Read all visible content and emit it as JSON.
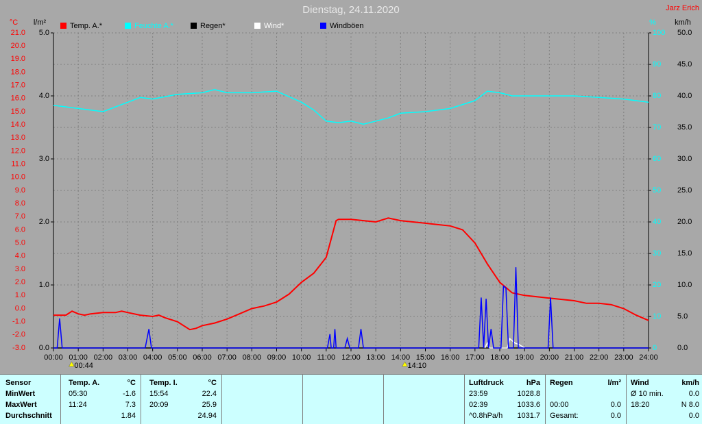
{
  "chart_data": {
    "type": "line",
    "title": "Dienstag, 24.11.2020",
    "author": "Jarz Erich",
    "y_label": "°C",
    "y3_label": "l/m²",
    "y2_label": "%",
    "y4_label": "km/h",
    "xlim": [
      0,
      24
    ],
    "xticks": [
      {
        "value": 0,
        "label": "00:00"
      },
      {
        "value": 1,
        "label": "01:00"
      },
      {
        "value": 2,
        "label": "02:00"
      },
      {
        "value": 3,
        "label": "03:00"
      },
      {
        "value": 4,
        "label": "04:00"
      },
      {
        "value": 5,
        "label": "05:00"
      },
      {
        "value": 6,
        "label": "06:00"
      },
      {
        "value": 7,
        "label": "07:00"
      },
      {
        "value": 8,
        "label": "08:00"
      },
      {
        "value": 9,
        "label": "09:00"
      },
      {
        "value": 10,
        "label": "10:00"
      },
      {
        "value": 11,
        "label": "11:00"
      },
      {
        "value": 12,
        "label": "12:00"
      },
      {
        "value": 13,
        "label": "13:00"
      },
      {
        "value": 14,
        "label": "14:00"
      },
      {
        "value": 15,
        "label": "15:00"
      },
      {
        "value": 16,
        "label": "16:00"
      },
      {
        "value": 17,
        "label": "17:00"
      },
      {
        "value": 18,
        "label": "18:00"
      },
      {
        "value": 19,
        "label": "19:00"
      },
      {
        "value": 20,
        "label": "20:00"
      },
      {
        "value": 21,
        "label": "21:00"
      },
      {
        "value": 22,
        "label": "22:00"
      },
      {
        "value": 23,
        "label": "23:00"
      },
      {
        "value": 24,
        "label": "24:00"
      }
    ],
    "ylim": [
      -3,
      21
    ],
    "yticks": [
      {
        "value": -3,
        "label": "-3.0"
      },
      {
        "value": -2,
        "label": "-2.0"
      },
      {
        "value": -1,
        "label": "-1.0"
      },
      {
        "value": 0,
        "label": "0.0"
      },
      {
        "value": 1,
        "label": "1.0"
      },
      {
        "value": 2,
        "label": "2.0"
      },
      {
        "value": 3,
        "label": "3.0"
      },
      {
        "value": 4,
        "label": "4.0"
      },
      {
        "value": 5,
        "label": "5.0"
      },
      {
        "value": 6,
        "label": "6.0"
      },
      {
        "value": 7,
        "label": "7.0"
      },
      {
        "value": 8,
        "label": "8.0"
      },
      {
        "value": 9,
        "label": "9.0"
      },
      {
        "value": 10,
        "label": "10.0"
      },
      {
        "value": 11,
        "label": "11.0"
      },
      {
        "value": 12,
        "label": "12.0"
      },
      {
        "value": 13,
        "label": "13.0"
      },
      {
        "value": 14,
        "label": "14.0"
      },
      {
        "value": 15,
        "label": "15.0"
      },
      {
        "value": 16,
        "label": "16.0"
      },
      {
        "value": 17,
        "label": "17.0"
      },
      {
        "value": 18,
        "label": "18.0"
      },
      {
        "value": 19,
        "label": "19.0"
      },
      {
        "value": 20,
        "label": "20.0"
      },
      {
        "value": 21,
        "label": "21.0"
      }
    ],
    "y2lim": [
      0,
      100
    ],
    "y2ticks": [
      0,
      10,
      20,
      30,
      40,
      50,
      60,
      70,
      80,
      90,
      100
    ],
    "y3lim": [
      0,
      5
    ],
    "y3ticks": [
      {
        "value": 0,
        "label": "0.0"
      },
      {
        "value": 1,
        "label": "1.0"
      },
      {
        "value": 2,
        "label": "2.0"
      },
      {
        "value": 3,
        "label": "3.0"
      },
      {
        "value": 4,
        "label": "4.0"
      },
      {
        "value": 5,
        "label": "5.0"
      }
    ],
    "y4lim": [
      0,
      50
    ],
    "y4ticks": [
      {
        "value": 0,
        "label": "0.0"
      },
      {
        "value": 5,
        "label": "5.0"
      },
      {
        "value": 10,
        "label": "10.0"
      },
      {
        "value": 15,
        "label": "15.0"
      },
      {
        "value": 20,
        "label": "20.0"
      },
      {
        "value": 25,
        "label": "25.0"
      },
      {
        "value": 30,
        "label": "30.0"
      },
      {
        "value": 35,
        "label": "35.0"
      },
      {
        "value": 40,
        "label": "40.0"
      },
      {
        "value": 45,
        "label": "45.0"
      },
      {
        "value": 50,
        "label": "50.0"
      }
    ],
    "grid": true,
    "series": [
      {
        "name": "Temp. A.*",
        "color": "#ff0000",
        "axis": "y",
        "x": [
          0,
          0.5,
          0.75,
          1,
          1.25,
          1.5,
          2,
          2.5,
          2.75,
          3,
          3.5,
          4,
          4.25,
          4.5,
          5,
          5.5,
          5.75,
          6,
          6.5,
          7,
          7.5,
          8,
          8.5,
          9,
          9.5,
          10,
          10.5,
          11,
          11.4,
          11.5,
          12,
          12.5,
          13,
          13.5,
          14,
          14.5,
          15,
          16,
          16.5,
          17,
          17.5,
          18,
          18.5,
          19,
          19.5,
          20,
          20.5,
          21,
          21.5,
          22,
          22.5,
          23,
          23.5,
          24
        ],
        "values": [
          -0.5,
          -0.5,
          -0.2,
          -0.4,
          -0.5,
          -0.4,
          -0.3,
          -0.3,
          -0.2,
          -0.3,
          -0.5,
          -0.6,
          -0.5,
          -0.7,
          -1.0,
          -1.6,
          -1.5,
          -1.3,
          -1.1,
          -0.8,
          -0.4,
          0.0,
          0.2,
          0.5,
          1.1,
          2.0,
          2.7,
          3.9,
          6.7,
          6.8,
          6.8,
          6.7,
          6.6,
          6.9,
          6.7,
          6.6,
          6.5,
          6.3,
          6.0,
          5.0,
          3.4,
          2.0,
          1.2,
          1.0,
          0.9,
          0.8,
          0.7,
          0.6,
          0.4,
          0.4,
          0.3,
          0.0,
          -0.5,
          -0.9
        ]
      },
      {
        "name": "Feuchte A.*",
        "color": "#00ffff",
        "axis": "y2",
        "x": [
          0,
          1,
          2,
          3,
          3.5,
          4,
          5,
          6,
          6.5,
          7,
          8,
          9,
          10,
          10.5,
          11,
          11.5,
          12,
          12.5,
          13,
          13.5,
          14,
          15,
          16,
          17,
          17.5,
          18,
          18.5,
          19,
          20,
          21,
          22,
          23,
          24
        ],
        "values": [
          77,
          76,
          75,
          78,
          79.5,
          79,
          80.5,
          81,
          82,
          81,
          81,
          81.5,
          78,
          75.5,
          72,
          71.5,
          72,
          71,
          72,
          73,
          74.5,
          75,
          76,
          78.5,
          81.5,
          81,
          80,
          80,
          80,
          80,
          79.5,
          79,
          78
        ]
      },
      {
        "name": "Regen*",
        "color": "#000000",
        "axis": "y3",
        "x": [
          0,
          24
        ],
        "values": [
          0,
          0
        ]
      },
      {
        "name": "Wind*",
        "color": "#ffffff",
        "axis": "y4",
        "x": [
          17.4,
          17.5,
          17.6,
          18.3,
          18.4,
          18.6,
          18.8,
          19.0
        ],
        "values": [
          0,
          0.8,
          0,
          0,
          1.5,
          0.8,
          0.5,
          0
        ]
      },
      {
        "name": "Windböen",
        "color": "#0000ff",
        "axis": "y4",
        "x": [
          0,
          0.15,
          0.25,
          0.35,
          3.7,
          3.85,
          3.95,
          11.05,
          11.15,
          11.2,
          11.3,
          11.35,
          11.4,
          11.75,
          11.85,
          11.95,
          12.3,
          12.4,
          12.5,
          17.15,
          17.25,
          17.35,
          17.45,
          17.55,
          17.65,
          17.75,
          18.05,
          18.15,
          18.25,
          18.35,
          18.55,
          18.65,
          18.75,
          19.95,
          20.05,
          20.15,
          24
        ],
        "values": [
          0,
          0,
          4.7,
          0,
          0,
          3.0,
          0,
          0,
          2.2,
          0,
          0,
          3.0,
          0,
          0,
          1.5,
          0,
          0,
          3.0,
          0,
          0,
          8.0,
          0,
          7.8,
          0,
          3.0,
          0,
          0,
          9.8,
          9.5,
          0,
          0,
          12.8,
          0,
          0,
          8.0,
          0,
          0
        ]
      }
    ],
    "annotations": [
      {
        "text": "00:44",
        "x": 0.73
      },
      {
        "text": "14:10",
        "x": 14.17
      }
    ]
  },
  "table": {
    "header": [
      "Sensor",
      "Temp. A.",
      "°C",
      "Temp. I.",
      "°C",
      "Luftdruck",
      "hPa",
      "Regen",
      "l/m²",
      "Wind",
      "km/h"
    ],
    "rows": [
      [
        "MinWert",
        "05:30",
        "-1.6",
        "15:54",
        "22.4",
        "23:59",
        "1028.8",
        null,
        null,
        "Ø 10 min.",
        "0.0"
      ],
      [
        "MaxWert",
        "11:24",
        "7.3",
        "20:09",
        "25.9",
        "02:39",
        "1033.6",
        "00:00",
        "0.0",
        "18:20",
        "N 8.0"
      ],
      [
        "Durchschnitt",
        null,
        "1.84",
        null,
        "24.94",
        "^0.8hPa/h",
        "1031.7",
        "Gesamt:",
        "0.0",
        null,
        "0.0"
      ]
    ]
  }
}
